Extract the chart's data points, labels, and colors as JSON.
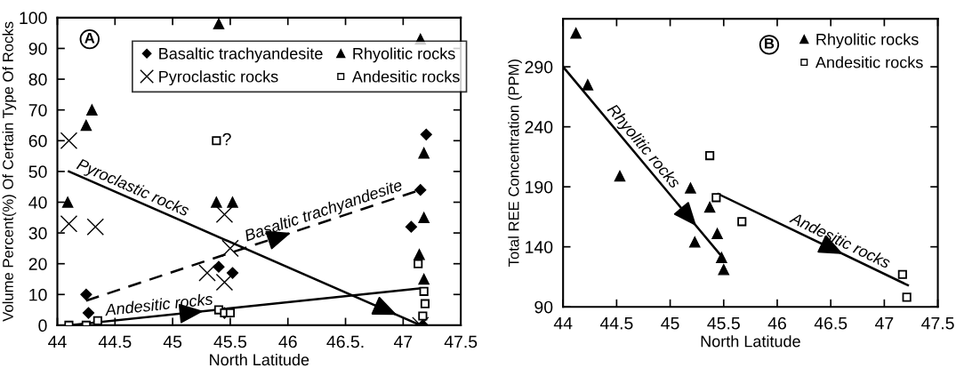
{
  "chart_data": [
    {
      "type": "scatter",
      "xlabel": "North Latitude",
      "ylabel": "Volume Percent(%) Of Certain Type Of Rocks",
      "xlim": [
        44,
        47.5
      ],
      "ylim": [
        0,
        100
      ],
      "xticks": [
        44,
        44.5,
        45,
        45.5,
        46,
        {
          "value": 46.5,
          "label": "46.5."
        },
        47,
        47.5
      ],
      "yticks": [
        0,
        10,
        20,
        30,
        40,
        50,
        60,
        70,
        80,
        90,
        100
      ],
      "grid": false,
      "legend": "top",
      "annotations": [
        "A",
        "?"
      ],
      "series": [
        {
          "name": "Basaltic trachyandesite",
          "color": "#000000",
          "marker": "diamond",
          "x": [
            44.25,
            44.27,
            45.4,
            45.45,
            45.52,
            47.07,
            47.15,
            47.2,
            47.17
          ],
          "values": [
            10,
            4,
            19,
            4,
            17,
            32,
            44,
            62,
            0
          ]
        },
        {
          "name": "Pyroclastic rocks",
          "color": "#000000",
          "marker": "cross",
          "x": [
            44.1,
            44.1,
            44.33,
            45.3,
            45.45,
            45.45,
            45.5,
            47.15
          ],
          "values": [
            60,
            33,
            32,
            17,
            36,
            14,
            25,
            0
          ]
        },
        {
          "name": "Rhyolitic rocks",
          "color": "#000000",
          "marker": "triangle",
          "x": [
            44.09,
            44.25,
            44.3,
            45.4,
            45.38,
            45.52,
            47.15,
            47.18,
            47.18,
            47.14,
            47.18
          ],
          "values": [
            40,
            65,
            70,
            98,
            40,
            40,
            93,
            56,
            35,
            23,
            15
          ]
        },
        {
          "name": "Andesitic rocks",
          "color": "#000000",
          "marker": "square",
          "x": [
            44.1,
            44.25,
            44.35,
            45.38,
            45.4,
            45.45,
            45.5,
            47.13,
            47.18,
            47.19,
            47.17
          ],
          "values": [
            0,
            0,
            1.5,
            60,
            5,
            4,
            4,
            20,
            11,
            7,
            3
          ]
        },
        {
          "type": "line",
          "name": "Pyroclastic rocks",
          "color": "#000000",
          "line_style": "solid",
          "x": [
            44.1,
            47.15
          ],
          "values": [
            50,
            0
          ]
        },
        {
          "type": "line",
          "name": "Basaltic trachyandesite",
          "color": "#000000",
          "line_style": "dashed",
          "x": [
            44.25,
            47.15
          ],
          "values": [
            8,
            44
          ]
        },
        {
          "type": "line",
          "name": "Andesitic rocks",
          "color": "#000000",
          "line_style": "solid",
          "x": [
            44.1,
            47.15
          ],
          "values": [
            0,
            12
          ]
        }
      ]
    },
    {
      "type": "scatter",
      "xlabel": "North Latitude",
      "ylabel": "Total REE Concentration (PPM)",
      "xlim": [
        44,
        47.5
      ],
      "ylim": [
        90,
        330
      ],
      "xticks": [
        44,
        44.5,
        45,
        45.5,
        46,
        46.5,
        47,
        47.5
      ],
      "yticks": [
        90,
        140,
        190,
        240,
        290
      ],
      "grid": false,
      "legend": "top right",
      "annotations": [
        "B"
      ],
      "series": [
        {
          "name": "Rhyolitic rocks",
          "color": "#000000",
          "marker": "triangle",
          "x": [
            44.12,
            44.23,
            44.53,
            45.19,
            45.23,
            45.37,
            45.44,
            45.48,
            45.5
          ],
          "values": [
            318,
            275,
            199,
            189,
            144,
            173,
            151,
            131,
            121
          ]
        },
        {
          "name": "Andesitic rocks",
          "color": "#000000",
          "marker": "square",
          "x": [
            45.37,
            45.43,
            45.67,
            47.17,
            47.21
          ],
          "values": [
            216,
            181,
            161,
            117,
            98
          ]
        },
        {
          "type": "line",
          "name": "Rhyolitic rocks",
          "color": "#000000",
          "line_style": "solid",
          "x": [
            44,
            45.5
          ],
          "values": [
            290,
            130
          ]
        },
        {
          "type": "line",
          "name": "Andesitic rocks",
          "color": "#000000",
          "line_style": "solid",
          "x": [
            45.45,
            47.22
          ],
          "values": [
            184,
            108
          ]
        }
      ]
    }
  ]
}
